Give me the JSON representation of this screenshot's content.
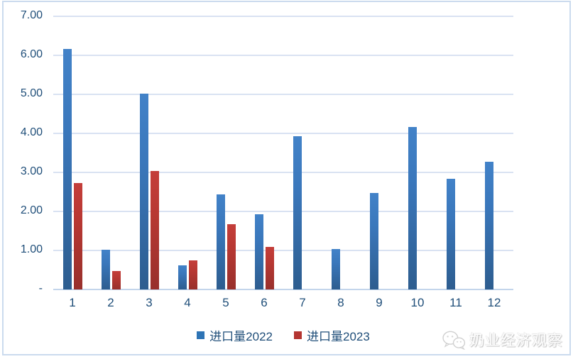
{
  "chart_data": {
    "type": "bar",
    "title": "",
    "xlabel": "",
    "ylabel": "",
    "categories": [
      "1",
      "2",
      "3",
      "4",
      "5",
      "6",
      "7",
      "8",
      "9",
      "10",
      "11",
      "12"
    ],
    "series": [
      {
        "name": "进口量2022",
        "legend_color": "#2e74b5",
        "values": [
          6.17,
          1.02,
          5.01,
          0.61,
          2.43,
          1.92,
          3.93,
          1.03,
          2.47,
          4.17,
          2.84,
          3.28
        ]
      },
      {
        "name": "进口量2023",
        "legend_color": "#b43531",
        "values": [
          2.73,
          0.47,
          3.03,
          0.74,
          1.68,
          1.1,
          null,
          null,
          null,
          null,
          null,
          null
        ]
      }
    ],
    "y_ticks": [
      "7.00",
      "6.00",
      "5.00",
      "4.00",
      "3.00",
      "2.00",
      "1.00",
      "-"
    ],
    "ylim": [
      0,
      7
    ],
    "grid": true,
    "legend_position": "bottom"
  },
  "colors": {
    "bar_blue_top": "#4282c8",
    "bar_blue_bottom": "#2d5d8f",
    "bar_red_top": "#c43e3a",
    "bar_red_bottom": "#98302c",
    "gridline": "#d9e2f2",
    "axis_line": "#c3d5eb",
    "tick_text": "#1f4e79",
    "frame_border": "#cbdbee",
    "background": "#ffffff"
  },
  "watermark": {
    "logo": "wechat-icon",
    "text": "奶业经济观察"
  }
}
